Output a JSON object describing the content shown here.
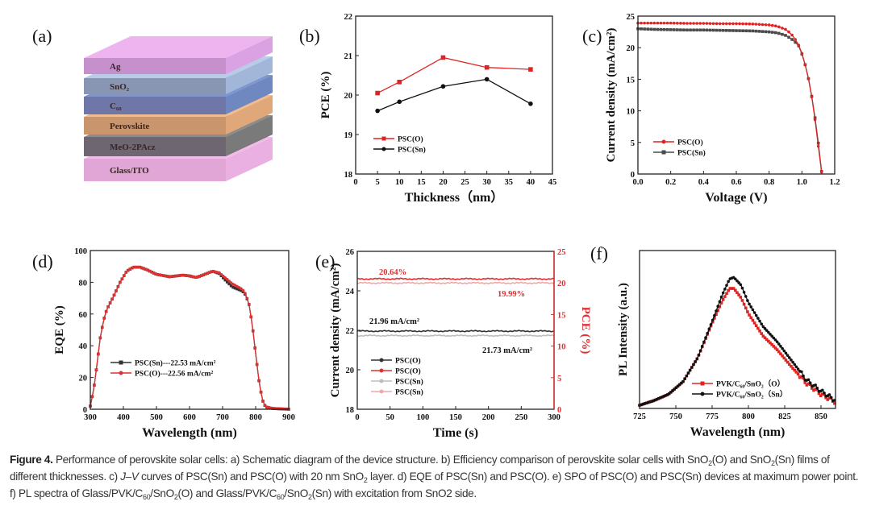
{
  "panel_labels": {
    "a": "(a)",
    "b": "(b)",
    "c": "(c)",
    "d": "(d)",
    "e": "(e)",
    "f": "(f)"
  },
  "panel_a": {
    "layers": [
      {
        "label": "Ag",
        "front": "#c690cc",
        "top": "#eeb4f0",
        "side": "#daa2e2"
      },
      {
        "label": "SnO₂",
        "front": "#8896b4",
        "top": "#b8cce8",
        "side": "#a2b6da"
      },
      {
        "label": "C₆₀",
        "front": "#6f76a8",
        "top": "#7b96d0",
        "side": "#7088c0"
      },
      {
        "label": "Perovskite",
        "front": "#c8956c",
        "top": "#f2bc8e",
        "side": "#e0a878"
      },
      {
        "label": "MeO-2PAcz",
        "front": "#6e6670",
        "top": "#8c8c8c",
        "side": "#7a7a7a"
      },
      {
        "label": "Glass/ITO",
        "front": "#e2a6d6",
        "top": "#f2bcea",
        "side": "#eab0e2"
      }
    ]
  },
  "chart_data": [
    {
      "panel": "b",
      "type": "line",
      "xlabel": "Thickness（nm）",
      "ylabel": "PCE (%)",
      "xlim": [
        0,
        45
      ],
      "ylim": [
        18,
        22
      ],
      "xticks": [
        0,
        5,
        10,
        15,
        20,
        25,
        30,
        35,
        40,
        45
      ],
      "yticks": [
        18,
        19,
        20,
        21,
        22
      ],
      "legend": "center-left",
      "series": [
        {
          "name": "PSC(O)",
          "color": "#e02424",
          "marker": "square",
          "x": [
            5,
            10,
            20,
            30,
            40
          ],
          "y": [
            20.05,
            20.33,
            20.95,
            20.7,
            20.65
          ]
        },
        {
          "name": "PSC(Sn)",
          "color": "#111111",
          "marker": "circle",
          "x": [
            5,
            10,
            20,
            30,
            40
          ],
          "y": [
            19.6,
            19.83,
            20.22,
            20.4,
            19.78
          ]
        }
      ]
    },
    {
      "panel": "c",
      "type": "line",
      "xlabel": "Voltage (V)",
      "ylabel": "Current density (mA/cm²)",
      "xlim": [
        0,
        1.2
      ],
      "ylim": [
        0,
        25
      ],
      "xticks": [
        "0.0",
        "0.2",
        "0.4",
        "0.6",
        "0.8",
        "1.0",
        "1.2"
      ],
      "yticks": [
        0,
        5,
        10,
        15,
        20,
        25
      ],
      "legend": "bottom-left",
      "series": [
        {
          "name": "PSC(Sn)",
          "color": "#4a4a4a",
          "marker": "square",
          "x": [
            0,
            0.1,
            0.2,
            0.3,
            0.4,
            0.5,
            0.6,
            0.7,
            0.8,
            0.85,
            0.9,
            0.93,
            0.95,
            0.97,
            0.98,
            1.0,
            1.02,
            1.04,
            1.06,
            1.08,
            1.1,
            1.12
          ],
          "y": [
            23.0,
            22.9,
            22.85,
            22.8,
            22.8,
            22.75,
            22.7,
            22.65,
            22.5,
            22.35,
            21.95,
            21.5,
            21.1,
            20.6,
            20.3,
            19.0,
            17.3,
            15.1,
            12.3,
            8.9,
            4.9,
            0.4
          ]
        },
        {
          "name": "PSC(O)",
          "color": "#e02424",
          "marker": "circle",
          "x": [
            0,
            0.1,
            0.2,
            0.3,
            0.4,
            0.5,
            0.6,
            0.7,
            0.8,
            0.85,
            0.9,
            0.93,
            0.95,
            0.97,
            0.98,
            1.0,
            1.02,
            1.04,
            1.06,
            1.08,
            1.1,
            1.12
          ],
          "y": [
            23.9,
            23.9,
            23.9,
            23.85,
            23.85,
            23.8,
            23.8,
            23.75,
            23.6,
            23.4,
            22.9,
            22.3,
            21.7,
            20.9,
            20.4,
            19.1,
            17.3,
            15.1,
            12.2,
            8.6,
            4.4,
            0.3
          ]
        }
      ],
      "legend_order": [
        1,
        0
      ]
    },
    {
      "panel": "d",
      "type": "line",
      "xlabel": "Wavelength (nm)",
      "ylabel": "EQE (%)",
      "xlim": [
        300,
        900
      ],
      "ylim": [
        0,
        100
      ],
      "xticks": [
        300,
        400,
        500,
        600,
        700,
        800,
        900
      ],
      "yticks": [
        0,
        20,
        40,
        60,
        80,
        100
      ],
      "legend": "lower-center",
      "series": [
        {
          "name": "PSC(Sn)---22.53 mA/cm²",
          "color": "#333333",
          "marker": "square",
          "x": [
            300,
            310,
            320,
            330,
            340,
            350,
            370,
            390,
            410,
            430,
            450,
            470,
            500,
            540,
            580,
            600,
            620,
            640,
            670,
            690,
            710,
            730,
            760,
            770,
            780,
            790,
            800,
            810,
            820,
            830,
            850,
            900
          ],
          "y": [
            2,
            12,
            28,
            45,
            56,
            63,
            71,
            80,
            87,
            89.5,
            89.5,
            88,
            85,
            83.5,
            84.5,
            84,
            83,
            84.5,
            87,
            85.5,
            81,
            77,
            74.5,
            72,
            66,
            53,
            35,
            18,
            6,
            1.5,
            0.5,
            0
          ]
        },
        {
          "name": "PSC(O)---22.56 mA/cm²",
          "color": "#e03030",
          "marker": "circle",
          "x": [
            300,
            310,
            320,
            330,
            340,
            350,
            370,
            390,
            410,
            430,
            450,
            470,
            500,
            540,
            580,
            600,
            620,
            640,
            670,
            690,
            710,
            730,
            760,
            770,
            780,
            790,
            800,
            810,
            820,
            830,
            850,
            900
          ],
          "y": [
            2,
            12,
            28,
            45,
            56,
            63,
            71,
            80,
            87,
            89.5,
            89.5,
            88,
            85,
            83.5,
            84.5,
            84,
            83,
            84.5,
            87,
            86,
            82.5,
            79,
            75.5,
            72.5,
            66,
            53,
            35,
            18,
            6,
            1.5,
            0.5,
            0
          ]
        }
      ]
    },
    {
      "panel": "e",
      "type": "line",
      "xlabel": "Time (s)",
      "ylabel": "Current density (mA/cm²)",
      "ylabel_right": "PCE (%)",
      "xlim": [
        0,
        300
      ],
      "ylim": [
        18,
        26
      ],
      "ylim_right": [
        0,
        25
      ],
      "xticks": [
        0,
        50,
        100,
        150,
        200,
        250,
        300
      ],
      "yticks": [
        18,
        20,
        22,
        24,
        26
      ],
      "yticks_right": [
        0,
        5,
        10,
        15,
        20,
        25
      ],
      "right_axis_color": "#e03030",
      "legend": "bottom-left",
      "series": [
        {
          "name": "PSC(O)",
          "axis": "left",
          "color": "#333333",
          "x": [
            0,
            300
          ],
          "y": [
            21.96,
            21.96
          ]
        },
        {
          "name": "PSC(O)",
          "axis": "right",
          "color": "#e03030",
          "x": [
            0,
            300
          ],
          "y": [
            20.64,
            20.64
          ]
        },
        {
          "name": "PSC(Sn)",
          "axis": "left",
          "color": "#bdbdbd",
          "x": [
            0,
            300
          ],
          "y": [
            21.73,
            21.73
          ]
        },
        {
          "name": "PSC(Sn)",
          "axis": "right",
          "color": "#f0a8a8",
          "x": [
            0,
            300
          ],
          "y": [
            19.99,
            19.99
          ]
        }
      ],
      "annotations": [
        {
          "text": "20.64%",
          "color": "#e03030"
        },
        {
          "text": "19.99%",
          "color": "#e03030"
        },
        {
          "text": "21.96 mA/cm²",
          "color": "#111111"
        },
        {
          "text": "21.73 mA/cm²",
          "color": "#111111"
        }
      ]
    },
    {
      "panel": "f",
      "type": "line",
      "xlabel": "Wavelength (nm)",
      "ylabel": "PL Intensity (a.u.)",
      "xlim": [
        725,
        860
      ],
      "ylim": [
        0,
        1
      ],
      "xticks": [
        725,
        750,
        775,
        800,
        825,
        850
      ],
      "yticks": [],
      "legend": "lower-right",
      "series": [
        {
          "name": "PVK/C₆₀/SnO₂（O）",
          "color": "#e02424",
          "marker": "square",
          "x": [
            725,
            735,
            745,
            755,
            765,
            775,
            782,
            787,
            790,
            795,
            800,
            810,
            820,
            830,
            840,
            850,
            860
          ],
          "y": [
            0.02,
            0.05,
            0.09,
            0.17,
            0.32,
            0.54,
            0.68,
            0.76,
            0.76,
            0.7,
            0.6,
            0.46,
            0.37,
            0.26,
            0.16,
            0.09,
            0.04
          ]
        },
        {
          "name": "PVK/C₆₀/SnO₂（Sn）",
          "color": "#111111",
          "marker": "circle",
          "x": [
            725,
            735,
            745,
            755,
            765,
            775,
            782,
            787,
            790,
            795,
            800,
            810,
            820,
            830,
            840,
            850,
            860
          ],
          "y": [
            0.02,
            0.05,
            0.09,
            0.17,
            0.32,
            0.55,
            0.72,
            0.82,
            0.83,
            0.78,
            0.67,
            0.52,
            0.42,
            0.3,
            0.18,
            0.11,
            0.05
          ]
        }
      ]
    }
  ],
  "caption": [
    {
      "b": "Figure 4."
    },
    {
      "t": " Performance of perovskite solar cells: a) Schematic diagram of the device structure. b) Efficiency comparison of perovskite solar cells with SnO"
    },
    {
      "sub": "2"
    },
    {
      "t": "(O) and SnO"
    },
    {
      "sub": "2"
    },
    {
      "t": "(Sn) films of different thicknesses. c) "
    },
    {
      "i": "J–V"
    },
    {
      "t": " curves of PSC(Sn) and PSC(O) with 20 nm SnO"
    },
    {
      "sub": "2"
    },
    {
      "t": " layer. d) EQE of PSC(Sn) and PSC(O). e) SPO of PSC(O) and PSC(Sn) devices at maximum power point. f) PL spectra of Glass/PVK/C"
    },
    {
      "sub": "60"
    },
    {
      "t": "/SnO"
    },
    {
      "sub": "2"
    },
    {
      "t": "(O) and Glass/PVK/C"
    },
    {
      "sub": "60"
    },
    {
      "t": "/SnO"
    },
    {
      "sub": "2"
    },
    {
      "t": "(Sn) with excitation from SnO2 side."
    }
  ]
}
